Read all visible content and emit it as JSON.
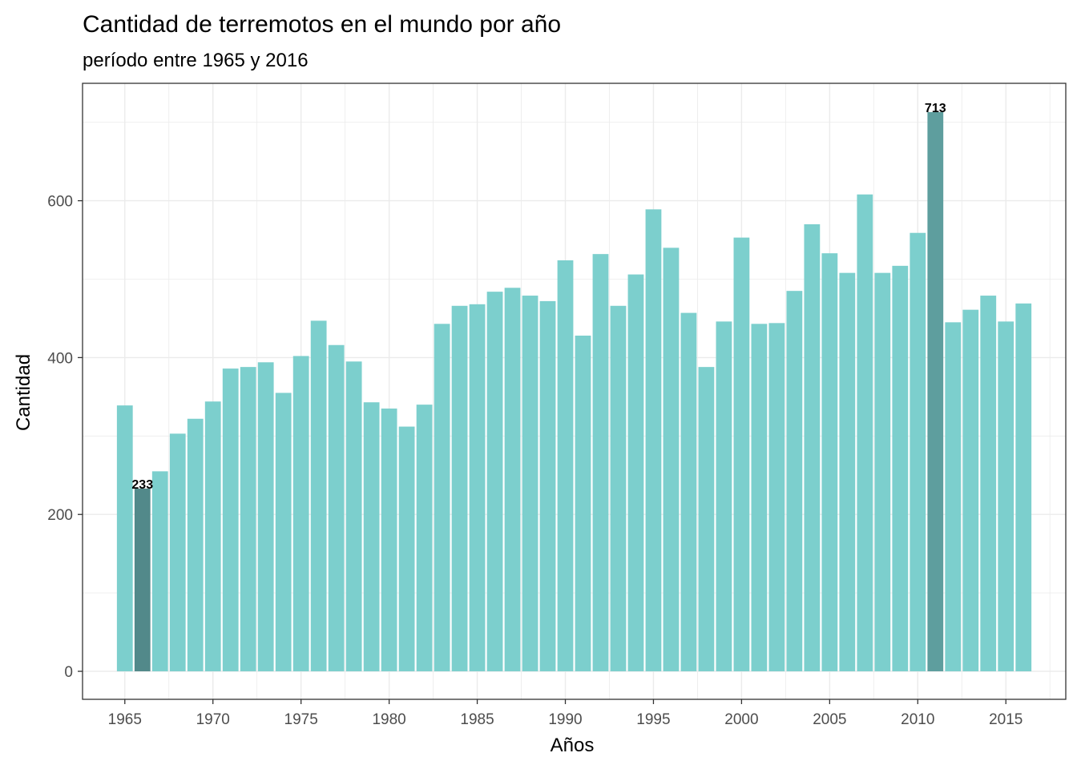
{
  "chart_data": {
    "type": "bar",
    "title": "Cantidad de terremotos en el mundo por año",
    "subtitle": "período entre 1965 y 2016",
    "xlabel": "Años",
    "ylabel": "Cantidad",
    "x": [
      1965,
      1966,
      1967,
      1968,
      1969,
      1970,
      1971,
      1972,
      1973,
      1974,
      1975,
      1976,
      1977,
      1978,
      1979,
      1980,
      1981,
      1982,
      1983,
      1984,
      1985,
      1986,
      1987,
      1988,
      1989,
      1990,
      1991,
      1992,
      1993,
      1994,
      1995,
      1996,
      1997,
      1998,
      1999,
      2000,
      2001,
      2002,
      2003,
      2004,
      2005,
      2006,
      2007,
      2008,
      2009,
      2010,
      2011,
      2012,
      2013,
      2014,
      2015,
      2016
    ],
    "values": [
      339,
      233,
      255,
      303,
      322,
      344,
      386,
      388,
      394,
      355,
      402,
      447,
      416,
      395,
      343,
      335,
      312,
      340,
      443,
      466,
      468,
      484,
      489,
      479,
      472,
      524,
      428,
      532,
      466,
      506,
      589,
      540,
      457,
      388,
      446,
      553,
      443,
      444,
      485,
      570,
      533,
      508,
      608,
      508,
      517,
      559,
      713,
      445,
      461,
      479,
      446,
      469
    ],
    "x_ticks": [
      1965,
      1970,
      1975,
      1980,
      1985,
      1990,
      1995,
      2000,
      2005,
      2010,
      2015
    ],
    "y_ticks": [
      0,
      200,
      400,
      600
    ],
    "xlim": [
      1962.6,
      2018.4
    ],
    "ylim": [
      -35.7,
      749.7
    ],
    "grid": true,
    "legend": "none",
    "colors": {
      "default": "#7ccfcd",
      "min": "#52898a",
      "max": "#5e9e9e"
    },
    "highlights": [
      {
        "year": 1966,
        "label": "233",
        "role": "min"
      },
      {
        "year": 2011,
        "label": "713",
        "role": "max"
      }
    ]
  }
}
